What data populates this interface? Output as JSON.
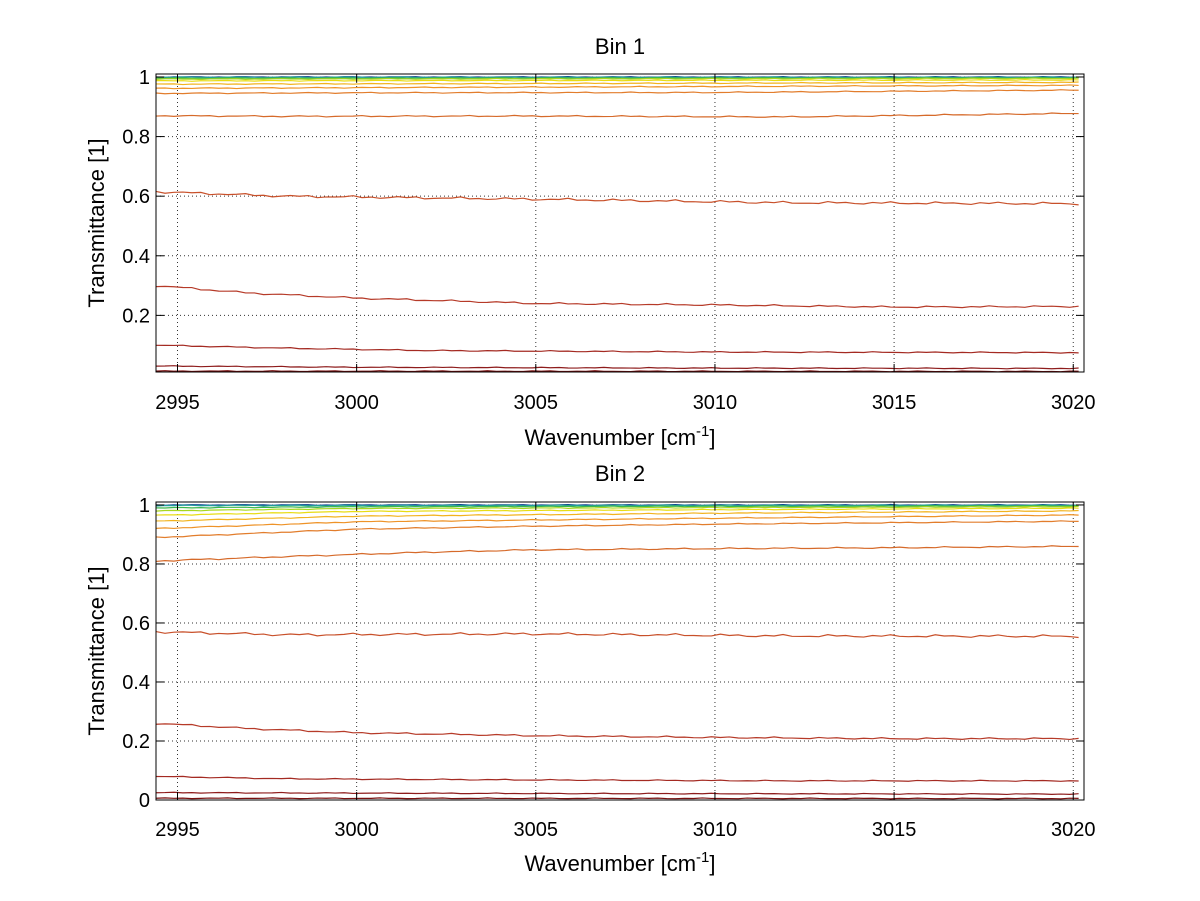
{
  "chart_data": [
    {
      "type": "line",
      "title": "Bin 1",
      "xlabel": "Wavenumber [cm",
      "xlabel_sup": "-1",
      "xlabel_suffix": "]",
      "ylabel": "Transmittance [1]",
      "xlim": [
        2994.4,
        3020.3
      ],
      "ylim": [
        0.01,
        1.01
      ],
      "xticks": [
        2995,
        3000,
        3005,
        3010,
        3015,
        3020
      ],
      "xtick_labels": [
        "2995",
        "3000",
        "3005",
        "3010",
        "3015",
        "3020"
      ],
      "yticks": [
        0.2,
        0.4,
        0.6,
        0.8,
        1.0
      ],
      "ytick_labels": [
        "0.2",
        "0.4",
        "0.6",
        "0.8",
        "1"
      ],
      "grid": true,
      "series": [
        {
          "color": "#0b3b8c",
          "points": [
            [
              2994.4,
              1.0
            ],
            [
              3020.2,
              1.0
            ]
          ]
        },
        {
          "color": "#1f9c9c",
          "points": [
            [
              2994.4,
              0.999
            ],
            [
              3020.2,
              0.999
            ]
          ]
        },
        {
          "color": "#3cb84c",
          "points": [
            [
              2994.4,
              0.996
            ],
            [
              3020.2,
              0.997
            ]
          ]
        },
        {
          "color": "#a8d61f",
          "points": [
            [
              2994.4,
              0.993
            ],
            [
              3020.2,
              0.995
            ]
          ]
        },
        {
          "color": "#e8dc14",
          "points": [
            [
              2994.4,
              0.987
            ],
            [
              3020.2,
              0.99
            ]
          ]
        },
        {
          "color": "#f2b31e",
          "points": [
            [
              2994.4,
              0.976
            ],
            [
              3005,
              0.978
            ],
            [
              3020.2,
              0.982
            ]
          ]
        },
        {
          "color": "#ee9328",
          "points": [
            [
              2994.4,
              0.962
            ],
            [
              3005,
              0.966
            ],
            [
              3020.2,
              0.972
            ]
          ]
        },
        {
          "color": "#e27d2c",
          "points": [
            [
              2994.4,
              0.945
            ],
            [
              3000,
              0.947
            ],
            [
              3010,
              0.948
            ],
            [
              3020.2,
              0.956
            ]
          ]
        },
        {
          "color": "#d66a2a",
          "points": [
            [
              2994.4,
              0.87
            ],
            [
              2998,
              0.868
            ],
            [
              3005,
              0.869
            ],
            [
              3012,
              0.866
            ],
            [
              3020.2,
              0.878
            ]
          ]
        },
        {
          "color": "#c8502a",
          "points": [
            [
              2994.4,
              0.615
            ],
            [
              2998,
              0.6
            ],
            [
              3005,
              0.59
            ],
            [
              3012,
              0.578
            ],
            [
              3020.2,
              0.575
            ]
          ]
        },
        {
          "color": "#b63a28",
          "points": [
            [
              2994.4,
              0.3
            ],
            [
              2997,
              0.275
            ],
            [
              3000,
              0.258
            ],
            [
              3005,
              0.24
            ],
            [
              3010,
              0.235
            ],
            [
              3015,
              0.228
            ],
            [
              3020.2,
              0.23
            ]
          ]
        },
        {
          "color": "#a42a22",
          "points": [
            [
              2994.4,
              0.1
            ],
            [
              2998,
              0.09
            ],
            [
              3002,
              0.082
            ],
            [
              3010,
              0.077
            ],
            [
              3020.2,
              0.075
            ]
          ]
        },
        {
          "color": "#8e1c1c",
          "points": [
            [
              2994.4,
              0.03
            ],
            [
              3000,
              0.026
            ],
            [
              3010,
              0.023
            ],
            [
              3020.2,
              0.022
            ]
          ]
        },
        {
          "color": "#7a1010",
          "points": [
            [
              2994.4,
              0.013
            ],
            [
              3020.2,
              0.012
            ]
          ]
        }
      ]
    },
    {
      "type": "line",
      "title": "Bin 2",
      "xlabel": "Wavenumber [cm",
      "xlabel_sup": "-1",
      "xlabel_suffix": "]",
      "ylabel": "Transmittance [1]",
      "xlim": [
        2994.4,
        3020.3
      ],
      "ylim": [
        0,
        1.01
      ],
      "xticks": [
        2995,
        3000,
        3005,
        3010,
        3015,
        3020
      ],
      "xtick_labels": [
        "2995",
        "3000",
        "3005",
        "3010",
        "3015",
        "3020"
      ],
      "yticks": [
        0,
        0.2,
        0.4,
        0.6,
        0.8,
        1.0
      ],
      "ytick_labels": [
        "0",
        "0.2",
        "0.4",
        "0.6",
        "0.8",
        "1"
      ],
      "grid": true,
      "series": [
        {
          "color": "#0b3b8c",
          "points": [
            [
              2994.4,
              1.0
            ],
            [
              3020.2,
              1.0
            ]
          ]
        },
        {
          "color": "#1f9c9c",
          "points": [
            [
              2994.4,
              0.998
            ],
            [
              3020.2,
              0.999
            ]
          ]
        },
        {
          "color": "#3cb84c",
          "points": [
            [
              2994.4,
              0.99
            ],
            [
              3000,
              0.994
            ],
            [
              3020.2,
              0.997
            ]
          ]
        },
        {
          "color": "#a8d61f",
          "points": [
            [
              2994.4,
              0.98
            ],
            [
              3000,
              0.988
            ],
            [
              3020.2,
              0.994
            ]
          ]
        },
        {
          "color": "#e8dc14",
          "points": [
            [
              2994.4,
              0.965
            ],
            [
              3000,
              0.978
            ],
            [
              3010,
              0.984
            ],
            [
              3020.2,
              0.989
            ]
          ]
        },
        {
          "color": "#f2b31e",
          "points": [
            [
              2994.4,
              0.945
            ],
            [
              3000,
              0.962
            ],
            [
              3010,
              0.972
            ],
            [
              3020.2,
              0.98
            ]
          ]
        },
        {
          "color": "#ee9328",
          "points": [
            [
              2994.4,
              0.92
            ],
            [
              3000,
              0.943
            ],
            [
              3010,
              0.955
            ],
            [
              3020.2,
              0.966
            ]
          ]
        },
        {
          "color": "#e27d2c",
          "points": [
            [
              2994.4,
              0.89
            ],
            [
              3000,
              0.918
            ],
            [
              3005,
              0.928
            ],
            [
              3010,
              0.935
            ],
            [
              3020.2,
              0.945
            ]
          ]
        },
        {
          "color": "#d66a2a",
          "points": [
            [
              2994.4,
              0.81
            ],
            [
              2998,
              0.825
            ],
            [
              3002,
              0.84
            ],
            [
              3005,
              0.848
            ],
            [
              3010,
              0.852
            ],
            [
              3015,
              0.855
            ],
            [
              3020.2,
              0.86
            ]
          ]
        },
        {
          "color": "#c8502a",
          "points": [
            [
              2994.4,
              0.57
            ],
            [
              2998,
              0.56
            ],
            [
              3005,
              0.563
            ],
            [
              3012,
              0.556
            ],
            [
              3020.2,
              0.555
            ]
          ]
        },
        {
          "color": "#b63a28",
          "points": [
            [
              2994.4,
              0.26
            ],
            [
              2997,
              0.242
            ],
            [
              3000,
              0.228
            ],
            [
              3005,
              0.218
            ],
            [
              3010,
              0.212
            ],
            [
              3015,
              0.208
            ],
            [
              3020.2,
              0.208
            ]
          ]
        },
        {
          "color": "#a42a22",
          "points": [
            [
              2994.4,
              0.08
            ],
            [
              2998,
              0.072
            ],
            [
              3005,
              0.068
            ],
            [
              3012,
              0.065
            ],
            [
              3020.2,
              0.065
            ]
          ]
        },
        {
          "color": "#8e1c1c",
          "points": [
            [
              2994.4,
              0.025
            ],
            [
              3005,
              0.022
            ],
            [
              3020.2,
              0.02
            ]
          ]
        },
        {
          "color": "#7a1010",
          "points": [
            [
              2994.4,
              0.006
            ],
            [
              3020.2,
              0.005
            ]
          ]
        }
      ]
    }
  ]
}
